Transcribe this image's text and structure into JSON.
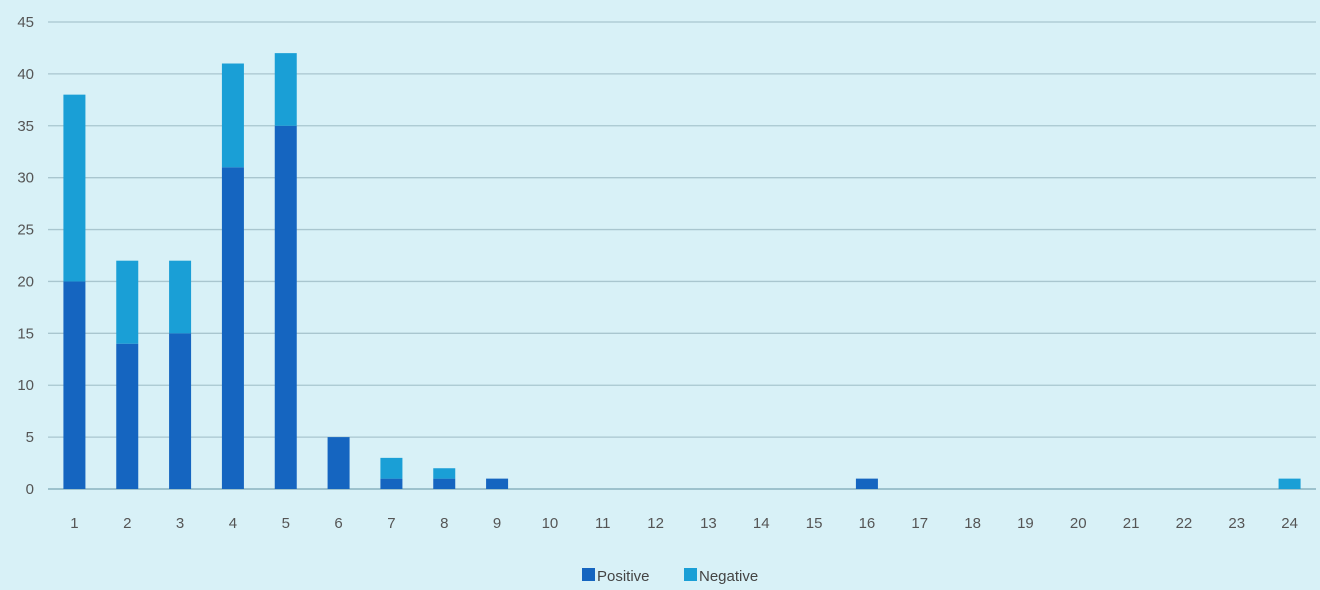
{
  "chart_data": {
    "type": "bar",
    "stacked": true,
    "categories": [
      "1",
      "2",
      "3",
      "4",
      "5",
      "6",
      "7",
      "8",
      "9",
      "10",
      "11",
      "12",
      "13",
      "14",
      "15",
      "16",
      "17",
      "18",
      "19",
      "20",
      "21",
      "22",
      "23",
      "24"
    ],
    "series": [
      {
        "name": "Positive",
        "color": "#1565c0",
        "values": [
          20,
          14,
          15,
          31,
          35,
          5,
          1,
          1,
          1,
          0,
          0,
          0,
          0,
          0,
          0,
          1,
          0,
          0,
          0,
          0,
          0,
          0,
          0,
          0
        ]
      },
      {
        "name": "Negative",
        "color": "#1a9fd6",
        "values": [
          18,
          8,
          7,
          10,
          7,
          0,
          2,
          1,
          0,
          0,
          0,
          0,
          0,
          0,
          0,
          0,
          0,
          0,
          0,
          0,
          0,
          0,
          0,
          1
        ]
      }
    ],
    "ylim": [
      0,
      45
    ],
    "yticks": [
      0,
      5,
      10,
      15,
      20,
      25,
      30,
      35,
      40,
      45
    ],
    "grid": true,
    "legend": "bottom",
    "title": "",
    "xlabel": "",
    "ylabel": ""
  }
}
